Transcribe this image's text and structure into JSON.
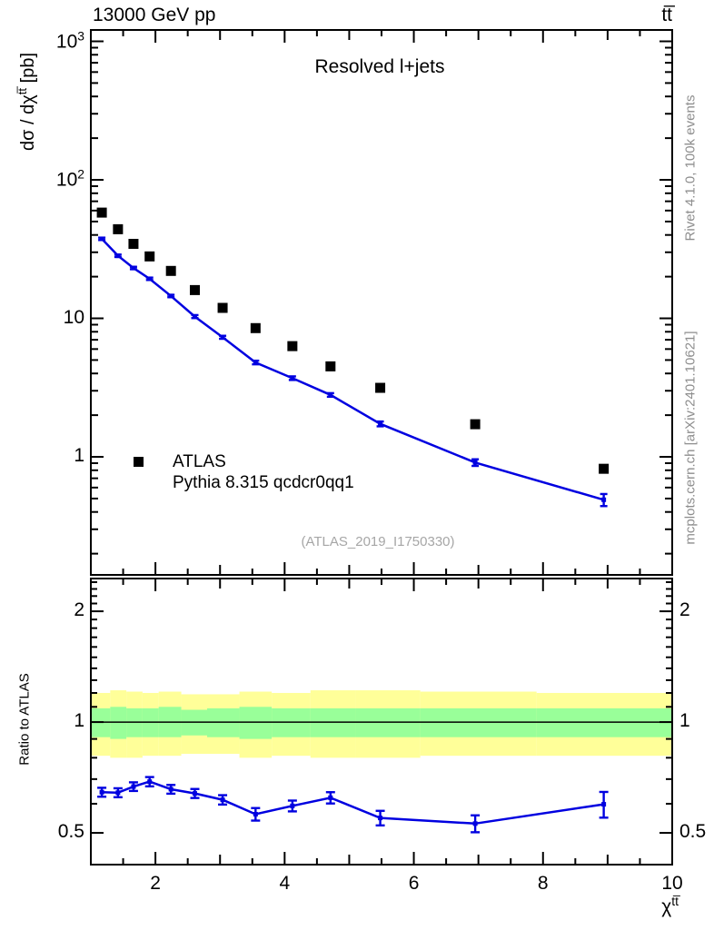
{
  "header": {
    "left": "13000 GeV pp",
    "right": "tt̅"
  },
  "side_texts": {
    "top": "Rivet 4.1.0,  100k events",
    "bottom": "mcplots.cern.ch [arXiv:2401.10621]"
  },
  "watermark": "(ATLAS_2019_I1750330)",
  "legend": {
    "items": [
      {
        "label": "ATLAS",
        "marker": "black-square"
      },
      {
        "label": "Pythia 8.315 qcdcr0qq1",
        "marker": "blue-line"
      }
    ]
  },
  "axes": {
    "y_label": {
      "prefix": "dσ / dχ",
      "sup": "tt̅",
      "suffix": " [pb]"
    },
    "x_label": {
      "base": "χ",
      "sup": "tt̅"
    },
    "ratio_label": "Ratio to ATLAS",
    "y_ticks": [
      {
        "text": "10",
        "sup": "3",
        "value": 1000
      },
      {
        "text": "10",
        "sup": "2",
        "value": 100
      },
      {
        "text": "10",
        "sup": "",
        "value": 10
      },
      {
        "text": "1",
        "sup": "",
        "value": 1
      }
    ],
    "ratio_ticks": [
      {
        "text": "2",
        "value": 2
      },
      {
        "text": "1",
        "value": 1
      },
      {
        "text": "0.5",
        "value": 0.5
      }
    ],
    "x_ticks": [
      {
        "text": "2",
        "value": 2
      },
      {
        "text": "4",
        "value": 4
      },
      {
        "text": "6",
        "value": 6
      },
      {
        "text": "8",
        "value": 8
      },
      {
        "text": "10",
        "value": 10
      }
    ]
  },
  "colors": {
    "mc_line": "#0000e0",
    "data_marker": "#000000",
    "band_inner": "#99ff99",
    "band_outer": "#ffff99",
    "reference_line": "#000000",
    "frame": "#000000",
    "side_text": "#8e8e8e",
    "watermark": "#a6a6a6"
  },
  "chart_data": [
    {
      "type": "line",
      "panel": "main",
      "title": "Resolved l+jets",
      "xlabel": "χ^tt̅",
      "ylabel": "dσ/dχ^tt̅ [pb]",
      "xscale": "linear",
      "yscale": "log",
      "xlim": [
        1,
        10
      ],
      "ylim": [
        0.1405,
        1208
      ],
      "grid": false,
      "legend_pos": "left-middle",
      "x": [
        1.17,
        1.42,
        1.66,
        1.91,
        2.24,
        2.61,
        3.04,
        3.55,
        4.12,
        4.71,
        5.48,
        6.95,
        8.94
      ],
      "series": [
        {
          "name": "ATLAS",
          "style": "square-markers",
          "values": [
            58,
            44,
            34.5,
            28,
            22,
            16,
            11.9,
            8.5,
            6.3,
            4.5,
            3.15,
            1.72,
            0.82
          ]
        },
        {
          "name": "Pythia 8.315 qcdcr0qq1",
          "style": "line-with-markers",
          "values": [
            37.5,
            28.3,
            23.1,
            19.3,
            14.5,
            10.3,
            7.3,
            4.8,
            3.7,
            2.8,
            1.73,
            0.91,
            0.49
          ],
          "yerr_frac": [
            0.02,
            0.02,
            0.02,
            0.02,
            0.02,
            0.025,
            0.025,
            0.03,
            0.03,
            0.03,
            0.04,
            0.055,
            0.1
          ]
        }
      ]
    },
    {
      "type": "ratio",
      "panel": "ratio",
      "ylabel": "Ratio to ATLAS",
      "xscale": "linear",
      "yscale": "log",
      "xlim": [
        1,
        10
      ],
      "ylim": [
        0.41,
        2.455
      ],
      "reference_line": 1,
      "bands": {
        "bin_edges": [
          1,
          1.3,
          1.55,
          1.8,
          2.05,
          2.4,
          2.8,
          3.3,
          3.8,
          4.4,
          5.1,
          6.1,
          7.9,
          10
        ],
        "outer_hi": [
          1.2,
          1.22,
          1.21,
          1.2,
          1.21,
          1.19,
          1.19,
          1.21,
          1.2,
          1.22,
          1.22,
          1.21,
          1.2
        ],
        "outer_lo": [
          0.81,
          0.8,
          0.8,
          0.81,
          0.81,
          0.82,
          0.82,
          0.8,
          0.81,
          0.8,
          0.8,
          0.81,
          0.81
        ],
        "inner_hi": [
          1.09,
          1.1,
          1.09,
          1.09,
          1.1,
          1.08,
          1.09,
          1.1,
          1.09,
          1.09,
          1.09,
          1.09,
          1.09
        ],
        "inner_lo": [
          0.91,
          0.9,
          0.91,
          0.91,
          0.91,
          0.92,
          0.91,
          0.9,
          0.91,
          0.91,
          0.91,
          0.91,
          0.91
        ]
      },
      "x": [
        1.17,
        1.42,
        1.66,
        1.91,
        2.24,
        2.61,
        3.04,
        3.55,
        4.12,
        4.71,
        5.48,
        6.95,
        8.94
      ],
      "series": [
        {
          "name": "Pythia/ATLAS",
          "values": [
            0.645,
            0.643,
            0.668,
            0.689,
            0.657,
            0.64,
            0.615,
            0.562,
            0.592,
            0.623,
            0.549,
            0.53,
            0.598
          ],
          "yerr": [
            0.018,
            0.018,
            0.018,
            0.02,
            0.018,
            0.018,
            0.018,
            0.022,
            0.02,
            0.022,
            0.025,
            0.028,
            0.048
          ]
        }
      ]
    }
  ]
}
